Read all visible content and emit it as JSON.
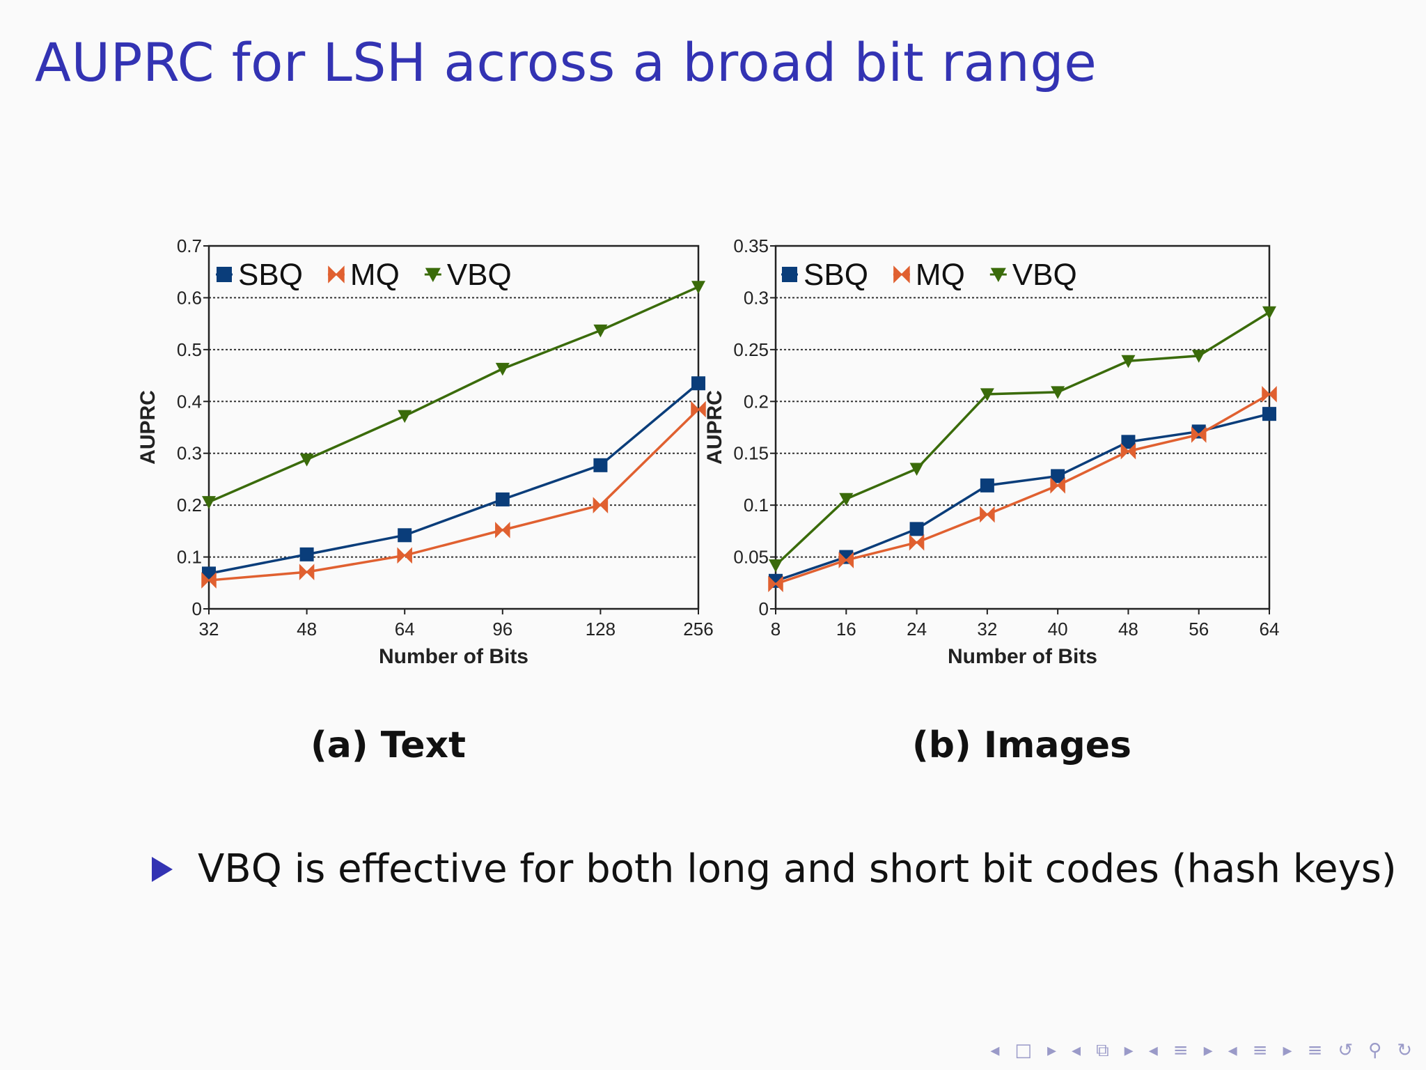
{
  "title": "AUPRC for LSH across a broad bit range",
  "colors": {
    "SBQ": "#0a3d7a",
    "MQ": "#e06030",
    "VBQ": "#3a6b0a",
    "accent": "#3333b3"
  },
  "chart_data": [
    {
      "type": "line",
      "categories": [
        "32",
        "48",
        "64",
        "96",
        "128",
        "256"
      ],
      "xlabel": "Number of Bits",
      "ylabel": "AUPRC",
      "ylim": [
        0,
        0.7
      ],
      "yticks": [
        "0",
        "0.1",
        "0.2",
        "0.3",
        "0.4",
        "0.5",
        "0.6",
        "0.7"
      ],
      "grid": true,
      "legend": "top-left",
      "series": [
        {
          "name": "SBQ",
          "marker": "square",
          "values": [
            0.068,
            0.105,
            0.142,
            0.211,
            0.277,
            0.435
          ]
        },
        {
          "name": "MQ",
          "marker": "bowtie",
          "values": [
            0.055,
            0.071,
            0.103,
            0.152,
            0.2,
            0.385
          ]
        },
        {
          "name": "VBQ",
          "marker": "triangle-down",
          "values": [
            0.206,
            0.288,
            0.372,
            0.463,
            0.537,
            0.621
          ]
        }
      ]
    },
    {
      "type": "line",
      "categories": [
        "8",
        "16",
        "24",
        "32",
        "40",
        "48",
        "56",
        "64"
      ],
      "xlabel": "Number of Bits",
      "ylabel": "AUPRC",
      "ylim": [
        0,
        0.35
      ],
      "yticks": [
        "0",
        "0.05",
        "0.1",
        "0.15",
        "0.2",
        "0.25",
        "0.3",
        "0.35"
      ],
      "grid": true,
      "legend": "top-left",
      "series": [
        {
          "name": "SBQ",
          "marker": "square",
          "values": [
            0.027,
            0.05,
            0.077,
            0.119,
            0.128,
            0.161,
            0.171,
            0.188
          ]
        },
        {
          "name": "MQ",
          "marker": "bowtie",
          "values": [
            0.024,
            0.047,
            0.064,
            0.091,
            0.119,
            0.152,
            0.168,
            0.207
          ]
        },
        {
          "name": "VBQ",
          "marker": "triangle-down",
          "values": [
            0.042,
            0.106,
            0.135,
            0.207,
            0.209,
            0.239,
            0.244,
            0.286
          ]
        }
      ]
    }
  ],
  "captions": {
    "a": "(a) Text",
    "b": "(b) Images"
  },
  "bullet": "VBQ is effective for both long and short bit codes (hash keys)",
  "nav": [
    "◂",
    "□",
    "▸",
    "◂",
    "⧉",
    "▸",
    "◂",
    "≡",
    "▸",
    "◂",
    "≡",
    "▸",
    "≡",
    "↺",
    "⚲",
    "↻"
  ]
}
